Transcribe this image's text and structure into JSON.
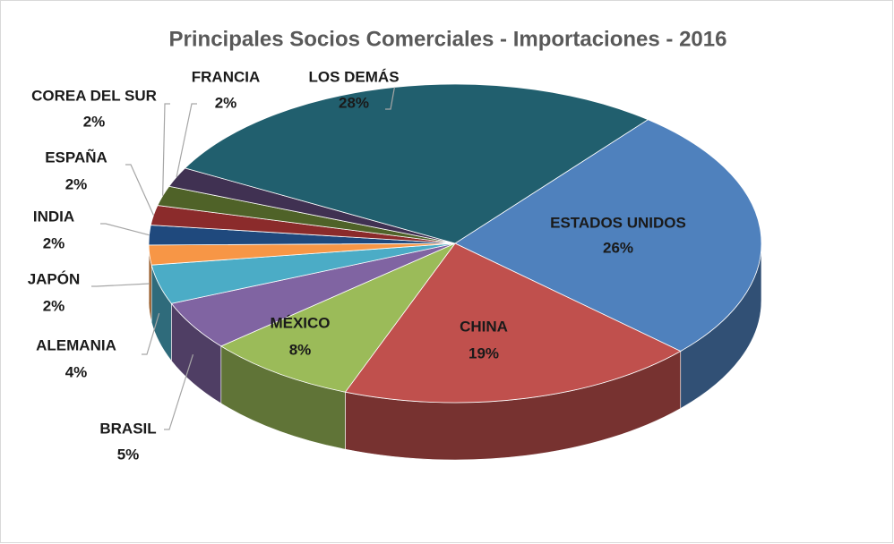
{
  "chart_data": {
    "type": "pie",
    "title": "Principales Socios Comerciales - Importaciones - 2016",
    "categories": [
      "ESTADOS UNIDOS",
      "CHINA",
      "MÉXICO",
      "BRASIL",
      "ALEMANIA",
      "JAPÓN",
      "INDIA",
      "ESPAÑA",
      "COREA DEL SUR",
      "FRANCIA",
      "LOS DEMÁS"
    ],
    "values": [
      26,
      19,
      8,
      5,
      4,
      2,
      2,
      2,
      2,
      2,
      28
    ],
    "value_labels": [
      "26%",
      "19%",
      "8%",
      "5%",
      "4%",
      "2%",
      "2%",
      "2%",
      "2%",
      "2%",
      "28%"
    ],
    "colors": [
      "#4f81bd",
      "#c0504d",
      "#9bbb59",
      "#8064a2",
      "#4bacc6",
      "#f79646",
      "#1f497d",
      "#8b2b2b",
      "#4f6228",
      "#403152",
      "#215f6e"
    ]
  }
}
